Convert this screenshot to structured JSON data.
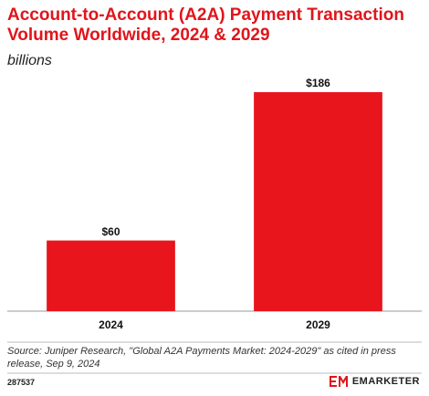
{
  "chart_data": {
    "type": "bar",
    "title": "Account-to-Account (A2A) Payment Transaction Volume Worldwide, 2024 & 2029",
    "subtitle": "billions",
    "categories": [
      "2024",
      "2029"
    ],
    "values": [
      60,
      186
    ],
    "value_labels": [
      "$60",
      "$186"
    ],
    "color": "#e8151c",
    "source": "Source: Juniper Research, \"Global A2A Payments Market: 2024-2029\" as cited in press release, Sep 9, 2024",
    "chart_id": "287537",
    "brand": "EMARKETER"
  }
}
